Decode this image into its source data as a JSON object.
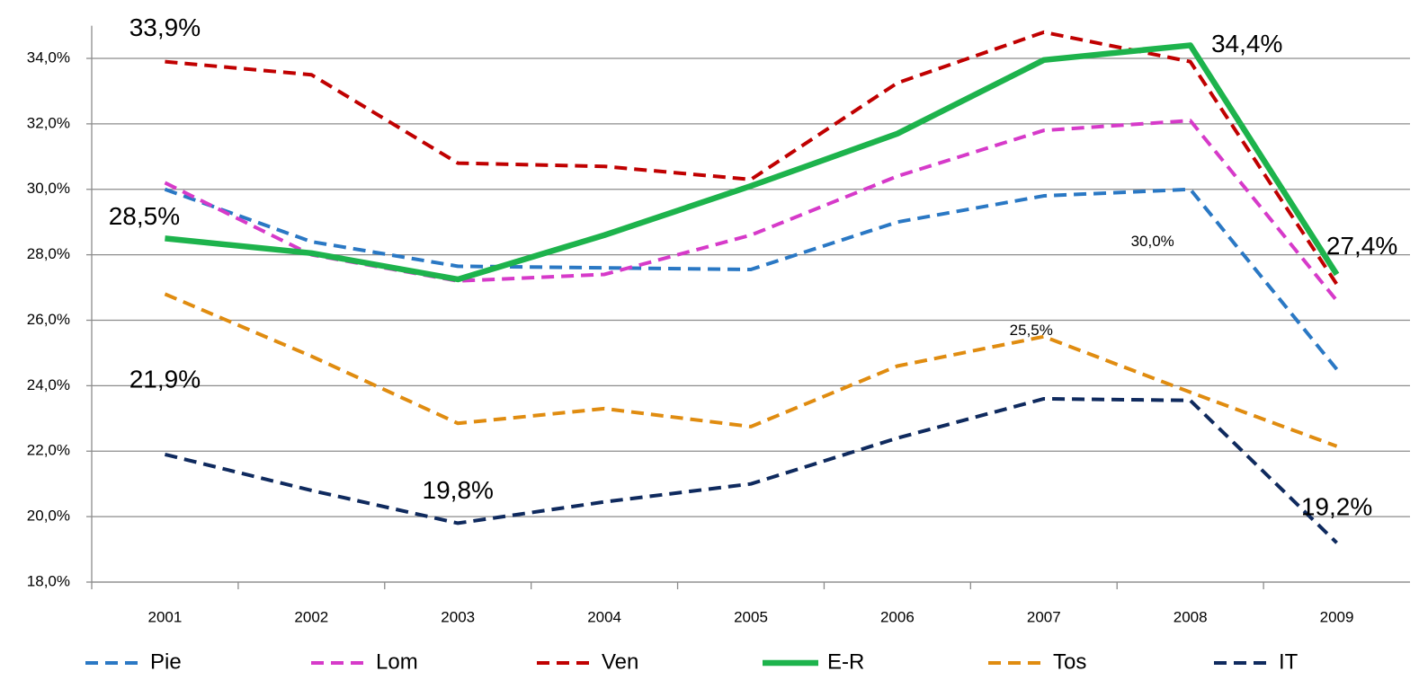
{
  "chart_data": {
    "type": "line",
    "categories": [
      "2001",
      "2002",
      "2003",
      "2004",
      "2005",
      "2006",
      "2007",
      "2008",
      "2009"
    ],
    "series": [
      {
        "name": "Pie",
        "color": "#2a78c4",
        "style": "dashed",
        "values": [
          30.0,
          28.4,
          27.65,
          27.6,
          27.55,
          29.0,
          29.8,
          30.0,
          24.5
        ],
        "value_labels": [
          null,
          null,
          null,
          null,
          null,
          null,
          null,
          "30,0%",
          null
        ]
      },
      {
        "name": "Lom",
        "color": "#d63ac9",
        "style": "dashed",
        "values": [
          30.2,
          28.0,
          27.2,
          27.4,
          28.6,
          30.4,
          31.8,
          32.1,
          26.6
        ]
      },
      {
        "name": "Ven",
        "color": "#c00000",
        "style": "dashed",
        "values": [
          33.9,
          33.5,
          30.8,
          30.7,
          30.3,
          33.25,
          34.8,
          33.9,
          27.1
        ],
        "value_labels": [
          "33,9%",
          null,
          null,
          null,
          null,
          null,
          null,
          null,
          null
        ]
      },
      {
        "name": "E-R",
        "color": "#1db34c",
        "style": "solid",
        "values": [
          28.5,
          28.05,
          27.25,
          28.6,
          30.1,
          31.7,
          33.95,
          34.4,
          27.4
        ],
        "value_labels": [
          "28,5%",
          null,
          null,
          null,
          null,
          null,
          null,
          "34,4%",
          "27,4%"
        ]
      },
      {
        "name": "Tos",
        "color": "#e08c10",
        "style": "dashed",
        "values": [
          26.8,
          24.9,
          22.85,
          23.3,
          22.75,
          24.6,
          25.5,
          23.8,
          22.15
        ],
        "value_labels": [
          null,
          null,
          null,
          null,
          null,
          null,
          "25,5%",
          null,
          null
        ]
      },
      {
        "name": "IT",
        "color": "#0f2a5e",
        "style": "dashed",
        "values": [
          21.9,
          20.8,
          19.8,
          20.45,
          21.0,
          22.4,
          23.6,
          23.55,
          19.2
        ],
        "value_labels": [
          "21,9%",
          null,
          "19,8%",
          null,
          null,
          null,
          null,
          null,
          "19,2%"
        ]
      }
    ],
    "ylim": [
      18,
      35
    ],
    "yticks": [
      {
        "value": 18,
        "label": "18,0%"
      },
      {
        "value": 20,
        "label": "20,0%"
      },
      {
        "value": 22,
        "label": "22,0%"
      },
      {
        "value": 24,
        "label": "24,0%"
      },
      {
        "value": 26,
        "label": "26,0%"
      },
      {
        "value": 28,
        "label": "28,0%"
      },
      {
        "value": 30,
        "label": "30,0%"
      },
      {
        "value": 32,
        "label": "32,0%"
      },
      {
        "value": 34,
        "label": "34,0%"
      }
    ],
    "grid": true,
    "legend": "bottom"
  }
}
